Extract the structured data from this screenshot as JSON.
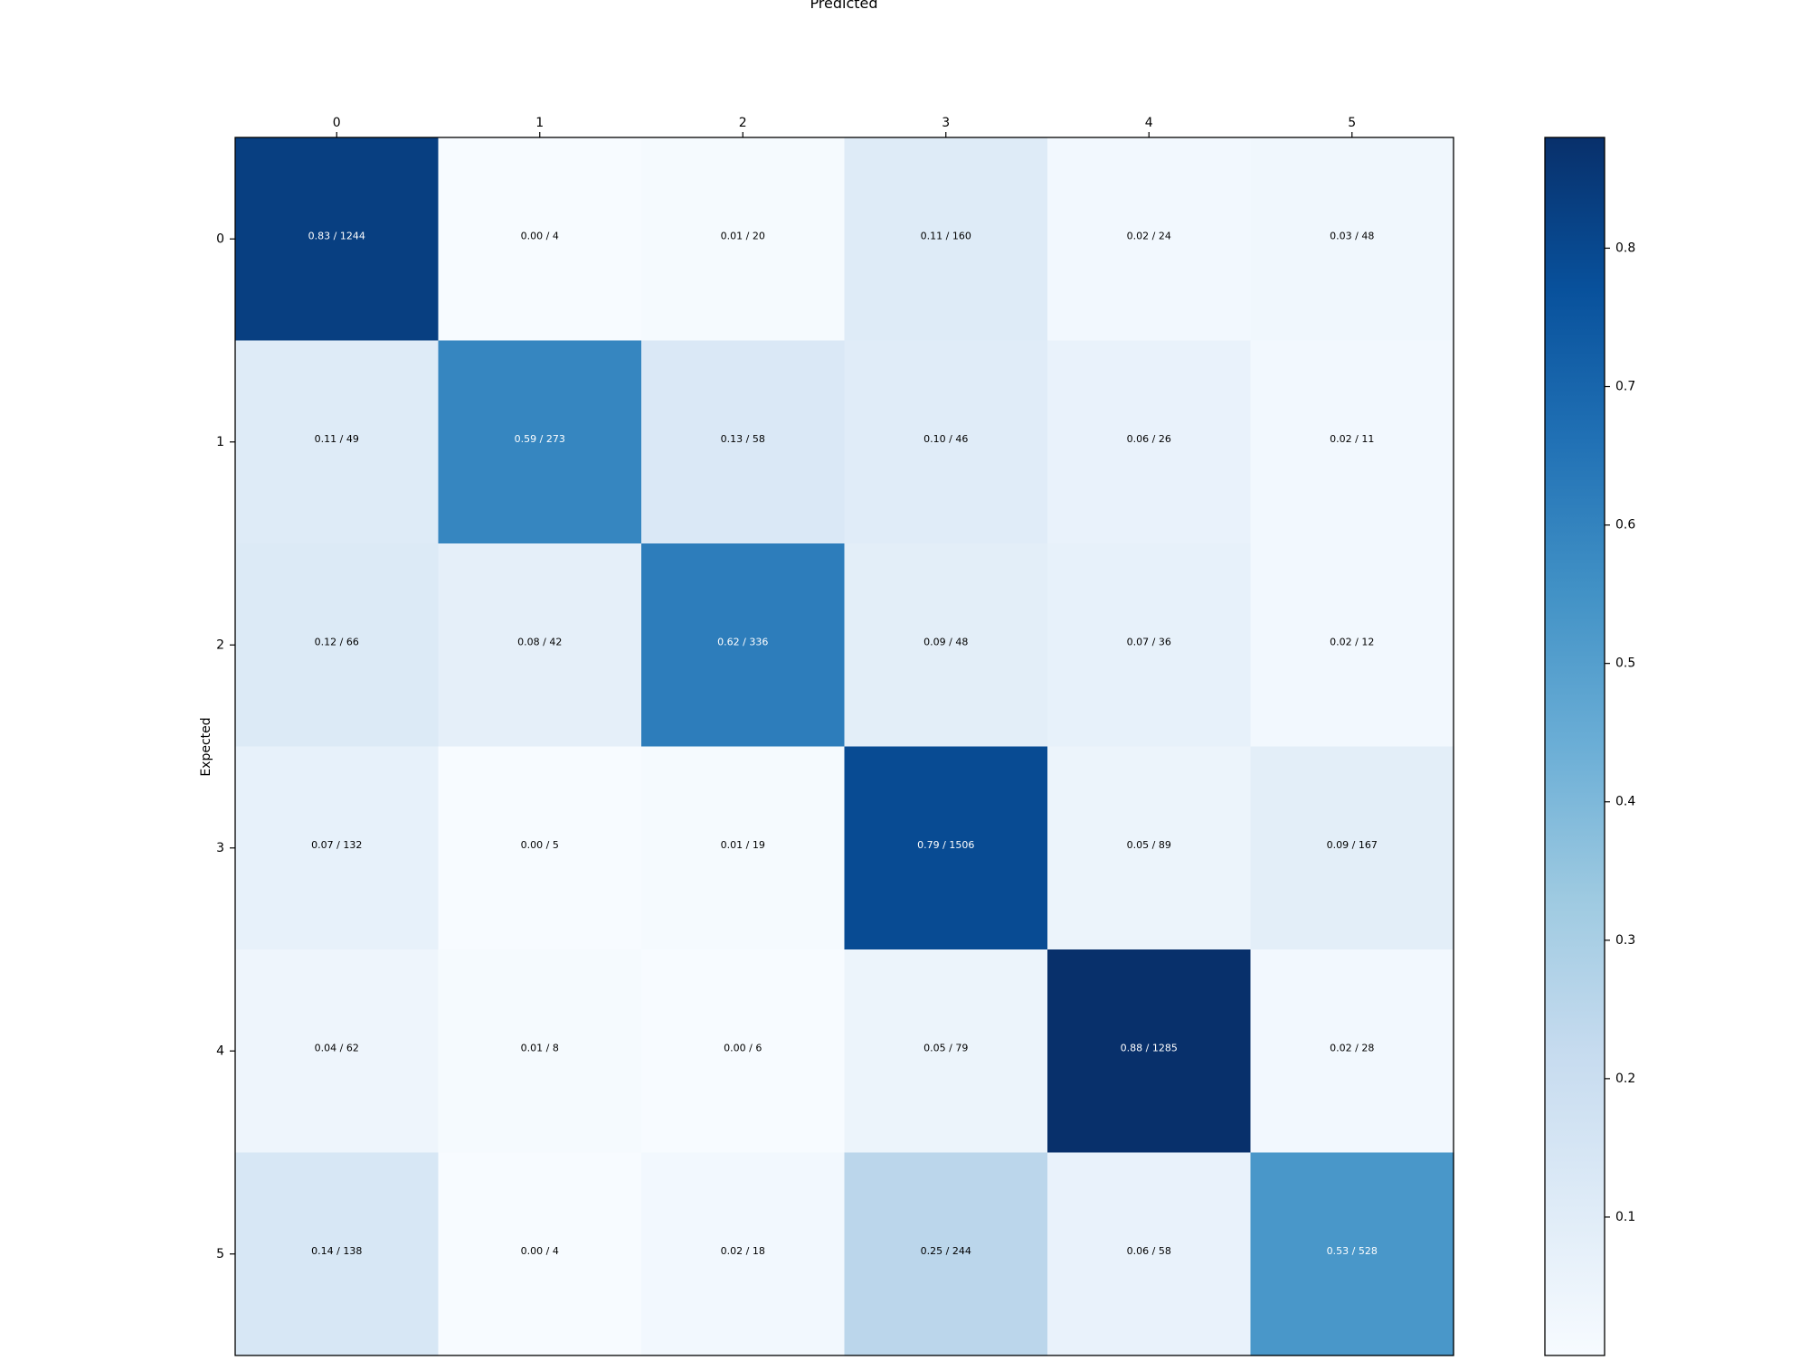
{
  "chart_data": {
    "type": "heatmap",
    "x_title": "Predicted",
    "y_title": "Expected",
    "x_categories": [
      "0",
      "1",
      "2",
      "3",
      "4",
      "5"
    ],
    "y_categories": [
      "0",
      "1",
      "2",
      "3",
      "4",
      "5"
    ],
    "values": [
      [
        0.83,
        0.0,
        0.01,
        0.11,
        0.02,
        0.03
      ],
      [
        0.11,
        0.59,
        0.13,
        0.1,
        0.06,
        0.02
      ],
      [
        0.12,
        0.08,
        0.62,
        0.09,
        0.07,
        0.02
      ],
      [
        0.07,
        0.0,
        0.01,
        0.79,
        0.05,
        0.09
      ],
      [
        0.04,
        0.01,
        0.0,
        0.05,
        0.88,
        0.02
      ],
      [
        0.14,
        0.0,
        0.02,
        0.25,
        0.06,
        0.53
      ]
    ],
    "counts": [
      [
        1244,
        4,
        20,
        160,
        24,
        48
      ],
      [
        49,
        273,
        58,
        46,
        26,
        11
      ],
      [
        66,
        42,
        336,
        48,
        36,
        12
      ],
      [
        132,
        5,
        19,
        1506,
        89,
        167
      ],
      [
        62,
        8,
        6,
        79,
        1285,
        28
      ],
      [
        138,
        4,
        18,
        244,
        58,
        528
      ]
    ],
    "cell_labels": [
      [
        "0.83 / 1244",
        "0.00 / 4",
        "0.01 / 20",
        "0.11 / 160",
        "0.02 / 24",
        "0.03 / 48"
      ],
      [
        "0.11 / 49",
        "0.59 / 273",
        "0.13 / 58",
        "0.10 / 46",
        "0.06 / 26",
        "0.02 / 11"
      ],
      [
        "0.12 / 66",
        "0.08 / 42",
        "0.62 / 336",
        "0.09 / 48",
        "0.07 / 36",
        "0.02 / 12"
      ],
      [
        "0.07 / 132",
        "0.00 / 5",
        "0.01 / 19",
        "0.79 / 1506",
        "0.05 / 89",
        "0.09 / 167"
      ],
      [
        "0.04 / 62",
        "0.01 / 8",
        "0.00 / 6",
        "0.05 / 79",
        "0.88 / 1285",
        "0.02 / 28"
      ],
      [
        "0.14 / 138",
        "0.00 / 4",
        "0.02 / 18",
        "0.25 / 244",
        "0.06 / 58",
        "0.53 / 528"
      ]
    ],
    "colorbar": {
      "colormap": "Blues",
      "range": [
        0.0,
        0.88
      ],
      "ticks": [
        0.1,
        0.2,
        0.3,
        0.4,
        0.5,
        0.6,
        0.7,
        0.8
      ],
      "tick_labels": [
        "0.1",
        "0.2",
        "0.3",
        "0.4",
        "0.5",
        "0.6",
        "0.7",
        "0.8"
      ]
    }
  }
}
